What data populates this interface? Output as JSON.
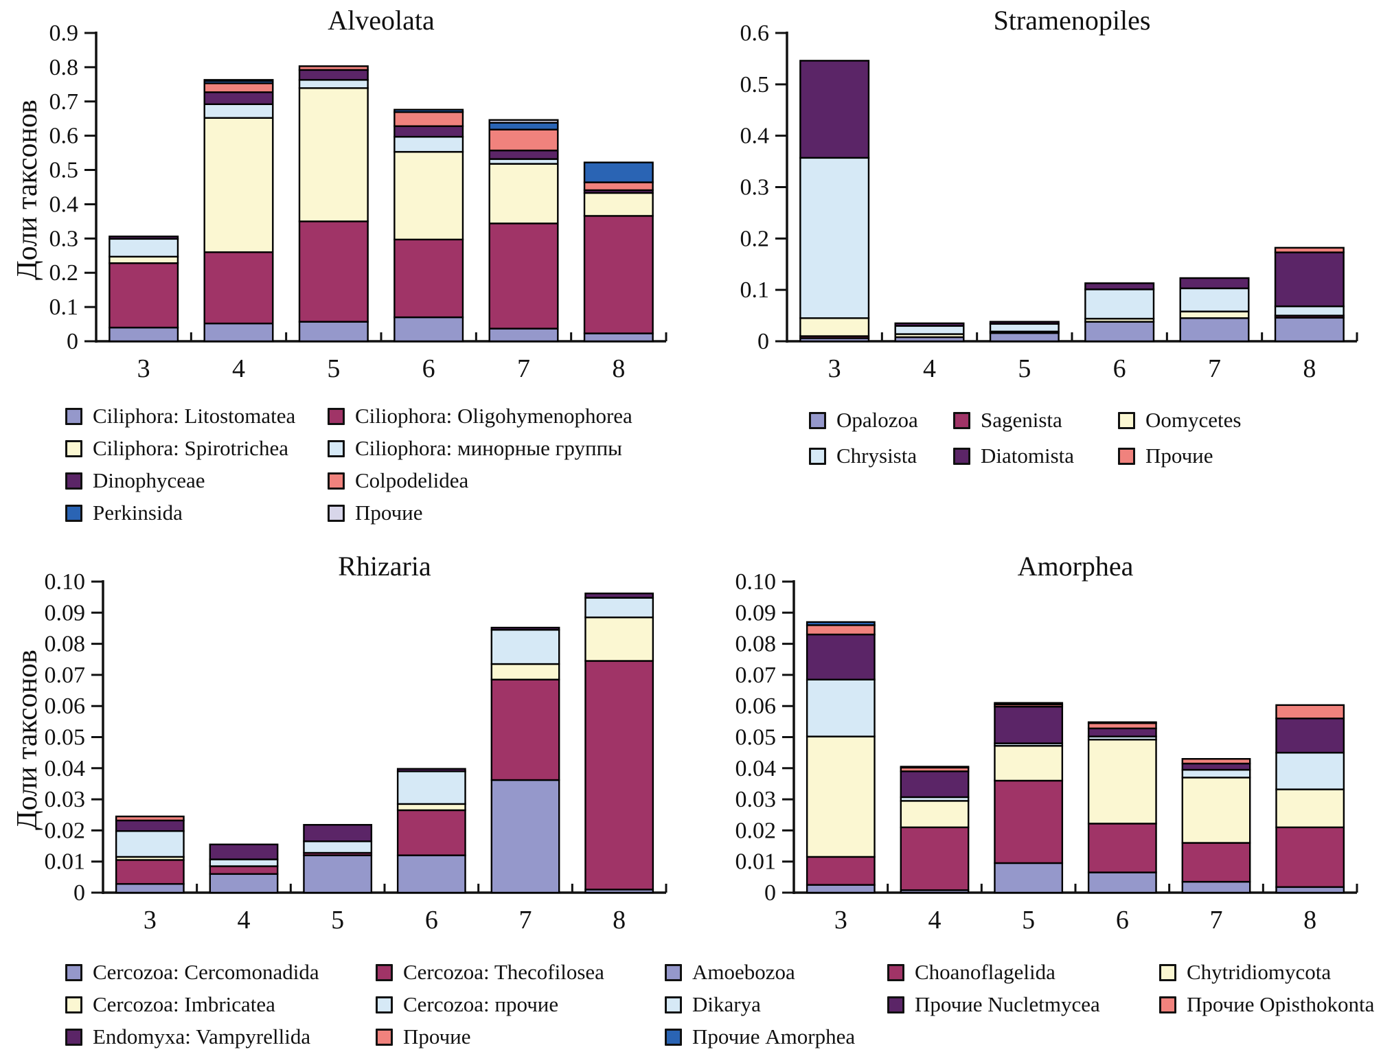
{
  "figure": {
    "background": "#ffffff",
    "axis_color": "#111111",
    "bar_border_color": "#000000",
    "ylabel": "Доли таксонов"
  },
  "chart_data": [
    {
      "type": "bar",
      "stacked": true,
      "title": "Alveolata",
      "ylabel": "Доли таксонов",
      "xlabel": "",
      "categories": [
        "3",
        "4",
        "5",
        "6",
        "7",
        "8"
      ],
      "ylim": [
        0,
        0.9
      ],
      "ytick_step": 0.1,
      "ytick_decimals": 1,
      "grid": false,
      "legend_position": "bottom",
      "legend_columns": 2,
      "series": [
        {
          "name": "Ciliphora: Litostomatea",
          "color": "#9598CB",
          "values": [
            0.04,
            0.052,
            0.057,
            0.07,
            0.037,
            0.023
          ]
        },
        {
          "name": "Ciliophora: Oligohymenophorea",
          "color": "#A03467",
          "values": [
            0.188,
            0.208,
            0.293,
            0.227,
            0.307,
            0.343
          ]
        },
        {
          "name": "Ciliphora: Spirotrichea",
          "color": "#FBF7D2",
          "values": [
            0.019,
            0.392,
            0.389,
            0.256,
            0.174,
            0.067
          ]
        },
        {
          "name": "Ciliophora: минорные группы",
          "color": "#D6E9F6",
          "values": [
            0.052,
            0.04,
            0.024,
            0.044,
            0.014,
            0
          ]
        },
        {
          "name": "Dinophyceae",
          "color": "#5B2567",
          "values": [
            0.007,
            0.035,
            0.029,
            0.031,
            0.025,
            0.008
          ]
        },
        {
          "name": "Colpodelidea",
          "color": "#F0827D",
          "values": [
            0,
            0.026,
            0.011,
            0.041,
            0.061,
            0.023
          ]
        },
        {
          "name": "Perkinsida",
          "color": "#2A64B4",
          "values": [
            0,
            0.007,
            0,
            0.007,
            0.02,
            0.058
          ]
        },
        {
          "name": "Прочие",
          "color": "#D8D6EA",
          "values": [
            0,
            0.003,
            0,
            0,
            0.008,
            0
          ]
        }
      ]
    },
    {
      "type": "bar",
      "stacked": true,
      "title": "Stramenopiles",
      "ylabel": "",
      "xlabel": "",
      "categories": [
        "3",
        "4",
        "5",
        "6",
        "7",
        "8"
      ],
      "ylim": [
        0,
        0.6
      ],
      "ytick_step": 0.1,
      "ytick_decimals": 1,
      "grid": false,
      "legend_position": "bottom",
      "legend_columns": 3,
      "series": [
        {
          "name": "Opalozoa",
          "color": "#9598CB",
          "values": [
            0.006,
            0.008,
            0.016,
            0.038,
            0.045,
            0.046
          ]
        },
        {
          "name": "Sagenista",
          "color": "#A03467",
          "values": [
            0.004,
            0,
            0.003,
            0,
            0,
            0.004
          ]
        },
        {
          "name": "Oomycetes",
          "color": "#FBF7D2",
          "values": [
            0.035,
            0.006,
            0,
            0.006,
            0.013,
            0
          ]
        },
        {
          "name": "Chrysista",
          "color": "#D6E9F6",
          "values": [
            0.312,
            0.016,
            0.015,
            0.057,
            0.045,
            0.018
          ]
        },
        {
          "name": "Diatomista",
          "color": "#5B2567",
          "values": [
            0.189,
            0.005,
            0.004,
            0.012,
            0.02,
            0.105
          ]
        },
        {
          "name": "Прочие",
          "color": "#F0827D",
          "values": [
            0,
            0,
            0,
            0,
            0,
            0.009
          ]
        }
      ]
    },
    {
      "type": "bar",
      "stacked": true,
      "title": "Rhizaria",
      "ylabel": "Доли таксонов",
      "xlabel": "",
      "categories": [
        "3",
        "4",
        "5",
        "6",
        "7",
        "8"
      ],
      "ylim": [
        0,
        0.1
      ],
      "ytick_step": 0.01,
      "ytick_decimals": 2,
      "grid": false,
      "legend_position": "bottom",
      "legend_columns": 2,
      "series": [
        {
          "name": "Cercozoa: Cercomonadida",
          "color": "#9598CB",
          "values": [
            0.0028,
            0.006,
            0.012,
            0.012,
            0.0362,
            0.001
          ]
        },
        {
          "name": "Cercozoa: Thecofilosea",
          "color": "#A03467",
          "values": [
            0.0077,
            0.0025,
            0.0008,
            0.0145,
            0.0323,
            0.0735
          ]
        },
        {
          "name": "Cercozoa: Imbricatea",
          "color": "#FBF7D2",
          "values": [
            0.001,
            0,
            0,
            0.002,
            0.005,
            0.014
          ]
        },
        {
          "name": "Cercozoa: прочие",
          "color": "#D6E9F6",
          "values": [
            0.0083,
            0.0022,
            0.0037,
            0.0105,
            0.011,
            0.0063
          ]
        },
        {
          "name": "Endomyxa: Vampyrellida",
          "color": "#5B2567",
          "values": [
            0.0034,
            0.0048,
            0.0053,
            0.0008,
            0.0007,
            0.0014
          ]
        },
        {
          "name": "Прочие",
          "color": "#F0827D",
          "values": [
            0.0013,
            0,
            0,
            0,
            0,
            0
          ]
        }
      ]
    },
    {
      "type": "bar",
      "stacked": true,
      "title": "Amorphea",
      "ylabel": "",
      "xlabel": "",
      "categories": [
        "3",
        "4",
        "5",
        "6",
        "7",
        "8"
      ],
      "ylim": [
        0,
        0.1
      ],
      "ytick_step": 0.01,
      "ytick_decimals": 2,
      "grid": false,
      "legend_position": "bottom",
      "legend_columns": 3,
      "series": [
        {
          "name": "Amoebozoa",
          "color": "#9598CB",
          "values": [
            0.0025,
            0.0008,
            0.0095,
            0.0065,
            0.0035,
            0.0018
          ]
        },
        {
          "name": "Choanoflagelida",
          "color": "#A03467",
          "values": [
            0.009,
            0.0202,
            0.0265,
            0.0157,
            0.0125,
            0.0192
          ]
        },
        {
          "name": "Chytridiomycota",
          "color": "#FBF7D2",
          "values": [
            0.0387,
            0.0085,
            0.0112,
            0.027,
            0.021,
            0.0122
          ]
        },
        {
          "name": "Dikarya",
          "color": "#D6E9F6",
          "values": [
            0.0183,
            0.0012,
            0.0008,
            0.001,
            0.0025,
            0.0118
          ]
        },
        {
          "name": "Прочие Nucletmycea",
          "color": "#5B2567",
          "values": [
            0.0145,
            0.0083,
            0.0118,
            0.0026,
            0.002,
            0.011
          ]
        },
        {
          "name": "Прочие Opisthokonta",
          "color": "#F0827D",
          "values": [
            0.003,
            0.0012,
            0.0007,
            0.0017,
            0.0015,
            0.0043
          ]
        },
        {
          "name": "Прочие Amorphea",
          "color": "#2A64B4",
          "values": [
            0.001,
            0.0003,
            0.0005,
            0.0003,
            0,
            0
          ]
        }
      ]
    }
  ]
}
